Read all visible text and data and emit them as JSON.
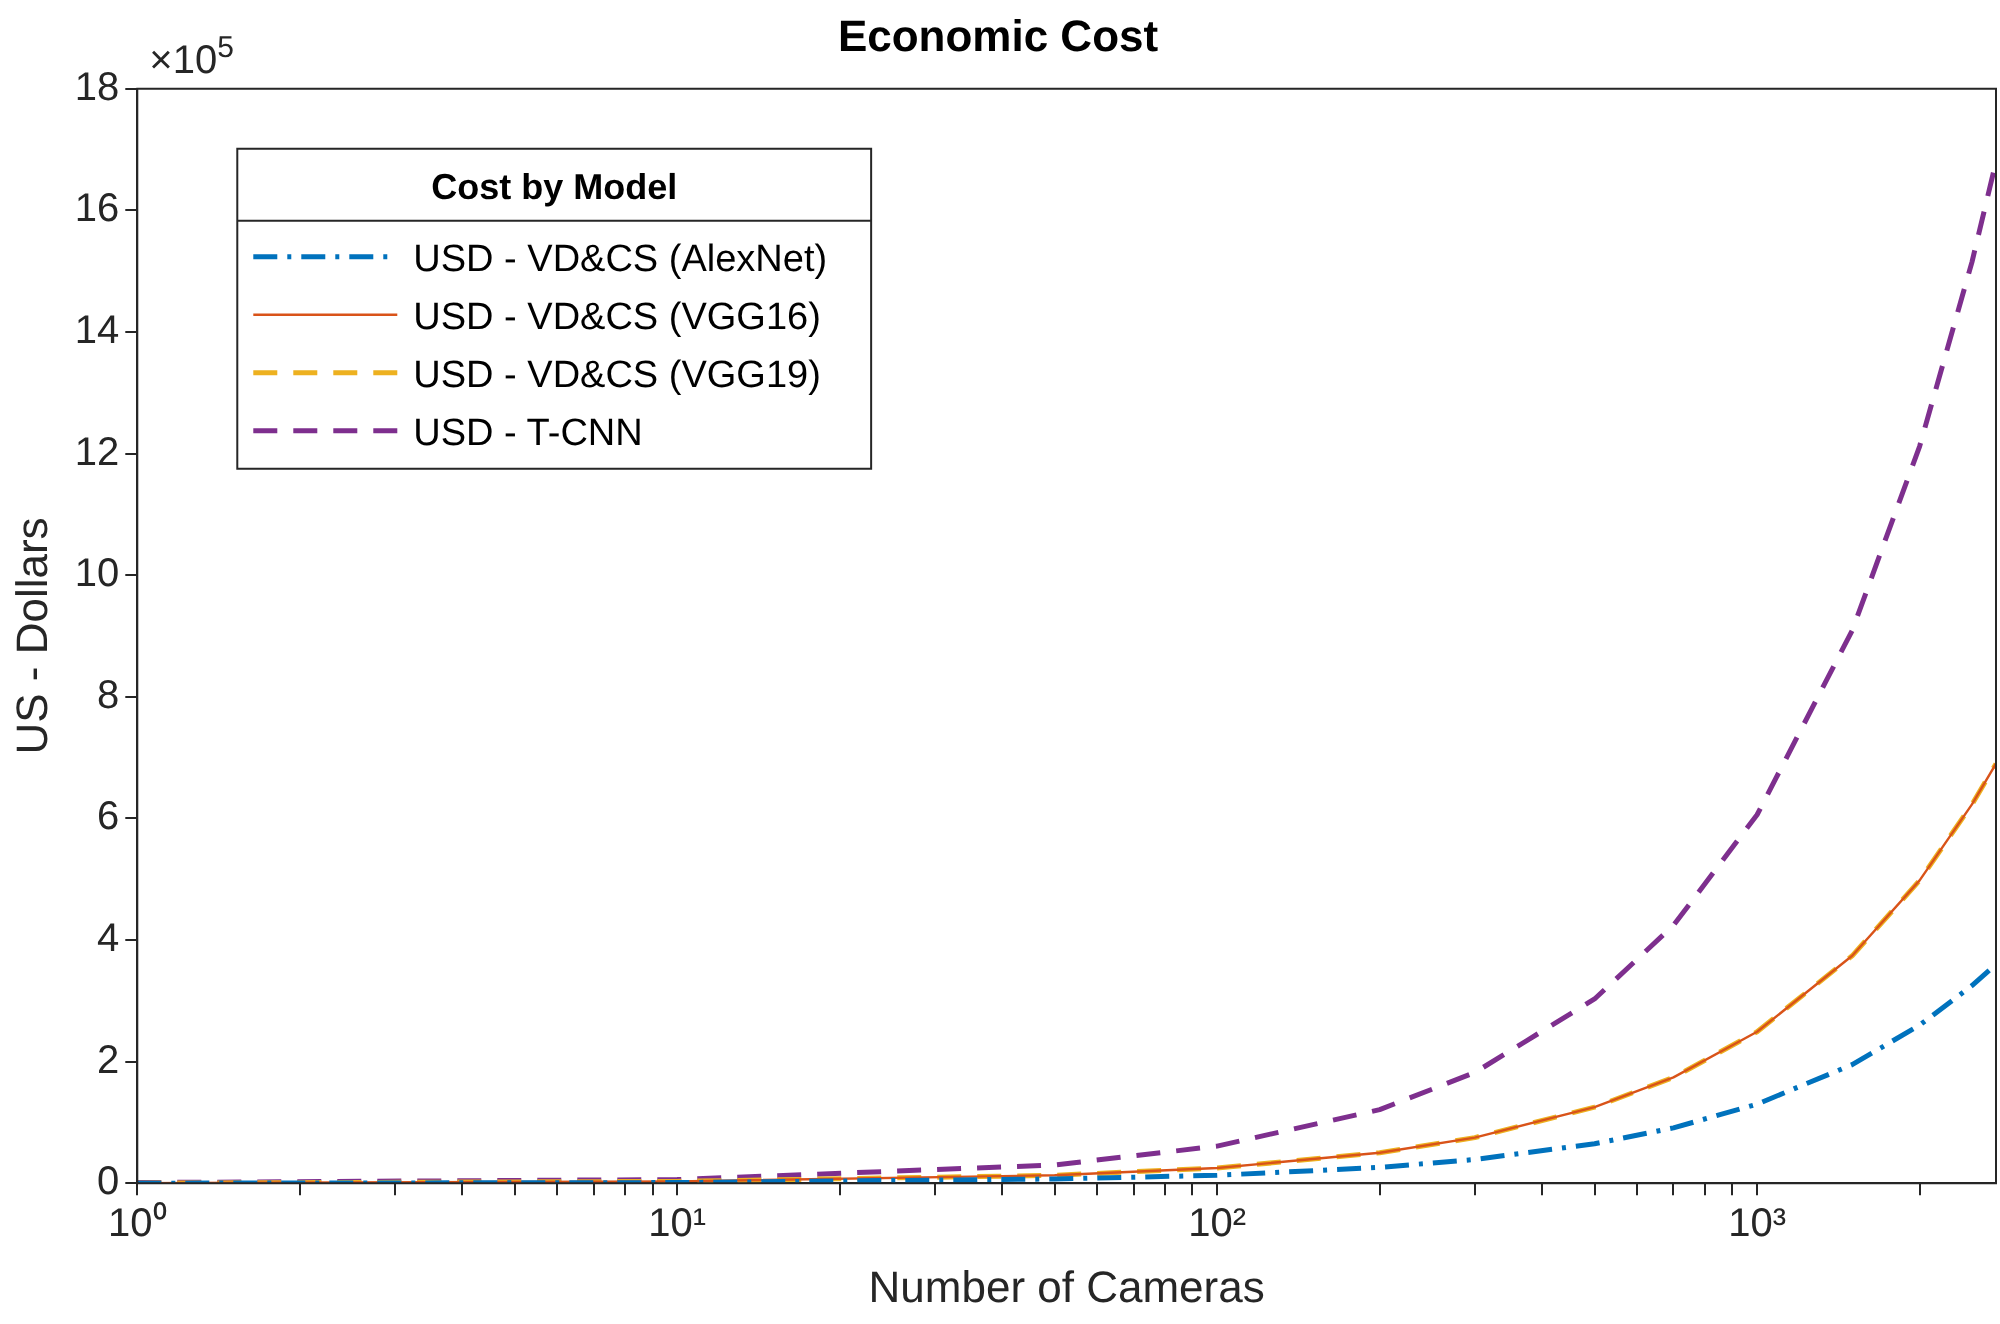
{
  "chart_data": {
    "type": "line",
    "title": "Economic Cost",
    "xlabel": "Number of Cameras",
    "ylabel": "US - Dollars",
    "legend_title": "Cost by Model",
    "legend": "top left",
    "grid": false,
    "marker": "none",
    "log": "x",
    "annotations": [
      "×10$^{5}$"
    ],
    "x": [
      1,
      10,
      50,
      100,
      200,
      300,
      500,
      700,
      1000,
      1500,
      2000,
      2500,
      2770
    ],
    "xlim": [
      1,
      2770
    ],
    "xticks": [
      {
        "value": 1,
        "label": "10⁰"
      },
      {
        "value": 2,
        "label": null
      },
      {
        "value": 3,
        "label": null
      },
      {
        "value": 4,
        "label": null
      },
      {
        "value": 5,
        "label": null
      },
      {
        "value": 6,
        "label": null
      },
      {
        "value": 7,
        "label": null
      },
      {
        "value": 8,
        "label": null
      },
      {
        "value": 9,
        "label": null
      },
      {
        "value": 10,
        "label": "10¹"
      },
      {
        "value": 20,
        "label": null
      },
      {
        "value": 30,
        "label": null
      },
      {
        "value": 40,
        "label": null
      },
      {
        "value": 50,
        "label": null
      },
      {
        "value": 60,
        "label": null
      },
      {
        "value": 70,
        "label": null
      },
      {
        "value": 80,
        "label": null
      },
      {
        "value": 90,
        "label": null
      },
      {
        "value": 100,
        "label": "10²"
      },
      {
        "value": 200,
        "label": null
      },
      {
        "value": 300,
        "label": null
      },
      {
        "value": 400,
        "label": null
      },
      {
        "value": 500,
        "label": null
      },
      {
        "value": 600,
        "label": null
      },
      {
        "value": 700,
        "label": null
      },
      {
        "value": 800,
        "label": null
      },
      {
        "value": 900,
        "label": null
      },
      {
        "value": 1000,
        "label": "10³"
      },
      {
        "value": 2000,
        "label": null
      }
    ],
    "ylim": [
      0,
      18
    ],
    "yticks": [
      0,
      2,
      4,
      6,
      8,
      10,
      12,
      14,
      16,
      18
    ],
    "series": [
      {
        "name": "USD - VD&CS (AlexNet)",
        "color": "#0072bd",
        "line_style": "dashdot",
        "values": [
          0,
          0.01,
          0.07,
          0.13,
          0.26,
          0.39,
          0.65,
          0.91,
          1.3,
          1.95,
          2.6,
          3.25,
          3.6
        ]
      },
      {
        "name": "USD - VD&CS (VGG16)",
        "color": "#d95319",
        "line_style": "solid",
        "values": [
          0,
          0.03,
          0.13,
          0.25,
          0.5,
          0.75,
          1.25,
          1.74,
          2.49,
          3.74,
          4.98,
          6.23,
          6.9
        ]
      },
      {
        "name": "USD - VD&CS (VGG19)",
        "color": "#edb120",
        "line_style": "dashed",
        "values": [
          0,
          0.03,
          0.13,
          0.25,
          0.5,
          0.75,
          1.25,
          1.74,
          2.49,
          3.74,
          4.98,
          6.23,
          6.9
        ]
      },
      {
        "name": "USD - T-CNN",
        "color": "#7e2f8e",
        "line_style": "dashed",
        "values": [
          0.01,
          0.06,
          0.3,
          0.61,
          1.21,
          1.82,
          3.03,
          4.24,
          6.06,
          9.09,
          12.12,
          15.15,
          16.8
        ]
      }
    ]
  }
}
